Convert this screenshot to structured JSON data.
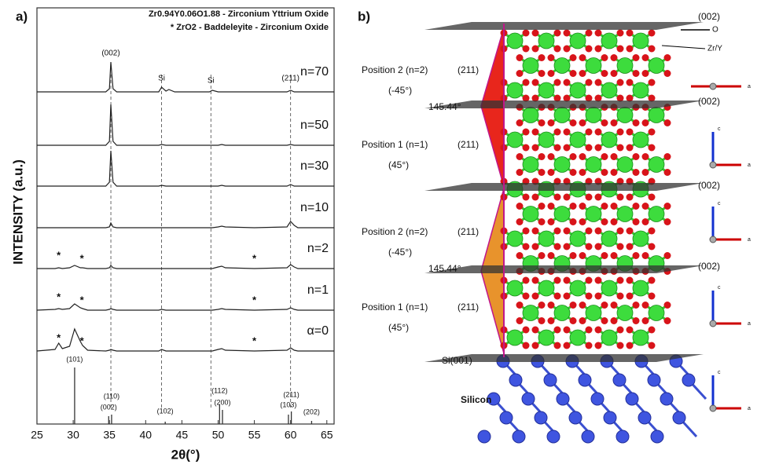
{
  "chart_data": {
    "type": "line",
    "panel_label": "a)",
    "legend_lines": [
      "Zr0.94Y0.06O1.88 - Zirconium Yttrium Oxide",
      "*  ZrO2 - Baddeleyite - Zirconium Oxide"
    ],
    "xlabel": "2θ(°)",
    "ylabel": "INTENSITY (a.u.)",
    "xlim": [
      25,
      66
    ],
    "xticks": [
      25,
      30,
      35,
      40,
      45,
      50,
      55,
      60,
      65
    ],
    "x": [
      25,
      27.5,
      28,
      28.5,
      29.5,
      30.2,
      31,
      31.3,
      32,
      34.5,
      35,
      35.2,
      35.5,
      36,
      41.8,
      42.2,
      42.8,
      43.2,
      44,
      48.8,
      49.2,
      50,
      50.5,
      51,
      55,
      59.5,
      60,
      60.5,
      61,
      66
    ],
    "series": [
      {
        "name": "n=70",
        "color": "#222222",
        "values": [
          0,
          0,
          0,
          0,
          0,
          0,
          0,
          0,
          0,
          0,
          4,
          38,
          4,
          0,
          0,
          6,
          1,
          3,
          0,
          0,
          2,
          0,
          0,
          0,
          0,
          0,
          2,
          0,
          0,
          0
        ]
      },
      {
        "name": "n=50",
        "color": "#222222",
        "values": [
          0,
          0,
          0,
          0,
          0,
          0,
          0,
          0,
          0,
          0,
          5,
          52,
          5,
          0,
          0,
          1,
          0,
          0,
          0,
          0,
          0,
          0,
          1,
          0,
          0,
          0,
          1,
          0,
          0,
          0
        ]
      },
      {
        "name": "n=30",
        "color": "#222222",
        "values": [
          0,
          0,
          0,
          0,
          0,
          0,
          0,
          0,
          0,
          0,
          5,
          45,
          5,
          0,
          0,
          1,
          0,
          0,
          0,
          0,
          0,
          0,
          1,
          0,
          0,
          0,
          2,
          0,
          0,
          0
        ]
      },
      {
        "name": "n=10",
        "color": "#222222",
        "values": [
          0,
          0,
          0,
          0,
          0,
          0,
          0,
          0,
          0,
          0,
          1,
          6,
          1,
          0,
          0,
          0,
          0,
          0,
          0,
          0,
          0,
          1,
          2,
          1,
          0,
          1,
          8,
          3,
          0,
          0
        ]
      },
      {
        "name": "n=2",
        "color": "#222222",
        "values": [
          0,
          0,
          1,
          0,
          1,
          4,
          1,
          1,
          0,
          0,
          1,
          4,
          1,
          0,
          0,
          0,
          0,
          0,
          0,
          0,
          0,
          2,
          3,
          1,
          0,
          1,
          5,
          2,
          0,
          0
        ]
      },
      {
        "name": "n=1",
        "color": "#222222",
        "values": [
          0,
          1,
          2,
          1,
          2,
          8,
          3,
          2,
          0,
          0,
          1,
          2,
          1,
          0,
          0,
          1,
          0,
          0,
          0,
          0,
          0,
          1,
          2,
          1,
          0,
          1,
          3,
          1,
          0,
          0
        ]
      },
      {
        "name": "α=0",
        "color": "#222222",
        "values": [
          0,
          2,
          10,
          3,
          6,
          28,
          12,
          7,
          1,
          0,
          1,
          2,
          1,
          0,
          0,
          2,
          0,
          0,
          0,
          0,
          0,
          2,
          3,
          1,
          0,
          1,
          4,
          1,
          0,
          0
        ]
      }
    ],
    "asterisk": "*",
    "asterisk_x": [
      28,
      31.2,
      55
    ],
    "asterisk_series": [
      4,
      5,
      6
    ],
    "guides_x": [
      35.2,
      42.2,
      49,
      60
    ],
    "annotations": [
      {
        "text": "(002)",
        "x": 35.2
      },
      {
        "text": "Si",
        "x": 42.2
      },
      {
        "text": "Si",
        "x": 49
      },
      {
        "text": "(211)",
        "x": 60
      }
    ],
    "reference": {
      "peaks": [
        30.2,
        35.3,
        34.9,
        42.7,
        50.2,
        50.6,
        60.1,
        59.7,
        62.9
      ],
      "intensities": [
        72,
        12,
        10,
        3,
        25,
        18,
        16,
        12,
        4
      ],
      "labels": [
        "(101)",
        "(110)",
        "(002)",
        "(102)",
        "(112)",
        "(200)",
        "(211)",
        "(103)",
        "(202)"
      ]
    }
  },
  "panel_b": {
    "label": "b)",
    "planes": [
      "(002)",
      "(002)",
      "(002)",
      "(002)"
    ],
    "atoms": {
      "o": "O",
      "zr": "Zr/Y"
    },
    "groups": [
      {
        "position": "Position 2 (n=2)",
        "plane": "(211)",
        "angle": "(-45°)"
      },
      {
        "position": "Position 1 (n=1)",
        "plane": "(211)",
        "angle": "(45°)"
      },
      {
        "position": "Position 2 (n=2)",
        "plane": "(211)",
        "angle": "(-45°)"
      },
      {
        "position": "Position 1 (n=1)",
        "plane": "(211)",
        "angle": "(45°)"
      }
    ],
    "angles": [
      "145.44°",
      "145.44°"
    ],
    "substrate_plane": "Si(001)",
    "substrate": "Silicon",
    "axis_labels": {
      "up": "c",
      "side": "a"
    }
  }
}
